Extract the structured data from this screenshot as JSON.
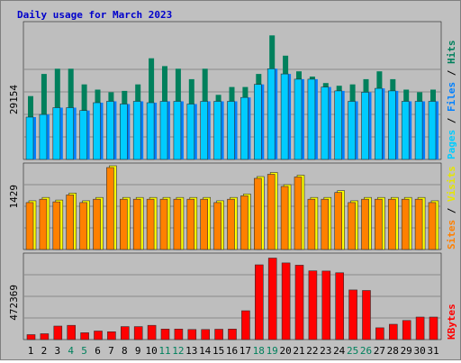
{
  "chart_data": [
    {
      "type": "bar",
      "title": "Daily usage for March 2023",
      "categories": [
        "1",
        "2",
        "3",
        "4",
        "5",
        "6",
        "7",
        "8",
        "9",
        "10",
        "11",
        "12",
        "13",
        "14",
        "15",
        "16",
        "17",
        "18",
        "19",
        "20",
        "21",
        "22",
        "23",
        "24",
        "25",
        "26",
        "27",
        "28",
        "29",
        "30",
        "31"
      ],
      "weekend_days": [
        "4",
        "5",
        "11",
        "12",
        "18",
        "19",
        "25",
        "26"
      ],
      "ymax_label": "29154",
      "ymax": 29154,
      "series": [
        {
          "name": "Pages",
          "values": [
            9260,
            9830,
            11330,
            11330,
            10700,
            12410,
            12700,
            12120,
            12700,
            12410,
            12700,
            12700,
            12120,
            12700,
            12700,
            12700,
            13550,
            16410,
            19840,
            18700,
            17550,
            17550,
            15840,
            14990,
            12700,
            14700,
            15550,
            14990,
            12700,
            12700,
            12700
          ]
        },
        {
          "name": "Files",
          "values": [
            9260,
            9830,
            11330,
            11330,
            10700,
            12410,
            12700,
            12120,
            12700,
            12410,
            12700,
            12700,
            12120,
            12700,
            12700,
            12700,
            13550,
            16410,
            19840,
            18700,
            17550,
            17550,
            15840,
            14990,
            12700,
            14700,
            15550,
            14990,
            12700,
            12700,
            12700
          ]
        },
        {
          "name": "Hits",
          "values": [
            13840,
            18700,
            19840,
            19840,
            16410,
            15260,
            14700,
            14990,
            16410,
            22130,
            20410,
            19840,
            17550,
            19840,
            14130,
            15840,
            15840,
            18700,
            27130,
            22700,
            19260,
            18120,
            16700,
            16120,
            16410,
            17550,
            19260,
            17550,
            15260,
            14700,
            15260
          ]
        }
      ],
      "colors": {
        "Pages": "#00ccff",
        "Files": "#0080ff",
        "Hits": "#00805c"
      }
    },
    {
      "type": "bar",
      "categories": [
        "1",
        "2",
        "3",
        "4",
        "5",
        "6",
        "7",
        "8",
        "9",
        "10",
        "11",
        "12",
        "13",
        "14",
        "15",
        "16",
        "17",
        "18",
        "19",
        "20",
        "21",
        "22",
        "23",
        "24",
        "25",
        "26",
        "27",
        "28",
        "29",
        "30",
        "31"
      ],
      "ymax_label": "1429",
      "ymax": 1429,
      "series": [
        {
          "name": "Sites",
          "values": [
            818,
            877,
            831,
            951,
            818,
            877,
            1429,
            877,
            877,
            877,
            877,
            877,
            877,
            877,
            818,
            877,
            936,
            1240,
            1311,
            1100,
            1264,
            877,
            877,
            994,
            818,
            877,
            877,
            877,
            877,
            877,
            818
          ]
        },
        {
          "name": "Visits",
          "values": [
            818,
            877,
            831,
            951,
            818,
            877,
            1429,
            877,
            877,
            877,
            877,
            877,
            877,
            877,
            818,
            877,
            936,
            1240,
            1311,
            1100,
            1264,
            877,
            877,
            994,
            818,
            877,
            877,
            877,
            877,
            877,
            818
          ]
        }
      ],
      "colors": {
        "Sites": "#ff8000",
        "Visits": "#ffff00"
      }
    },
    {
      "type": "bar",
      "categories": [
        "1",
        "2",
        "3",
        "4",
        "5",
        "6",
        "7",
        "8",
        "9",
        "10",
        "11",
        "12",
        "13",
        "14",
        "15",
        "16",
        "17",
        "18",
        "19",
        "20",
        "21",
        "22",
        "23",
        "24",
        "25",
        "26",
        "27",
        "28",
        "29",
        "30",
        "31"
      ],
      "ymax_label": "472369",
      "ymax": 472369,
      "series": [
        {
          "name": "KBytes",
          "values": [
            28300,
            34000,
            77900,
            82100,
            39700,
            49500,
            45300,
            75000,
            75000,
            82100,
            60900,
            60900,
            58000,
            58000,
            59500,
            60900,
            166000,
            431000,
            470000,
            442000,
            429000,
            396000,
            395000,
            385000,
            286000,
            283000,
            68000,
            88400,
            110000,
            130000,
            130000
          ]
        }
      ],
      "colors": {
        "KBytes": "#ff0000"
      }
    }
  ],
  "legend": {
    "pages": "Pages",
    "files": "Files",
    "hits": "Hits",
    "sites": "Sites",
    "visits": "Visits",
    "kbytes": "KBytes",
    "slash": " / "
  }
}
